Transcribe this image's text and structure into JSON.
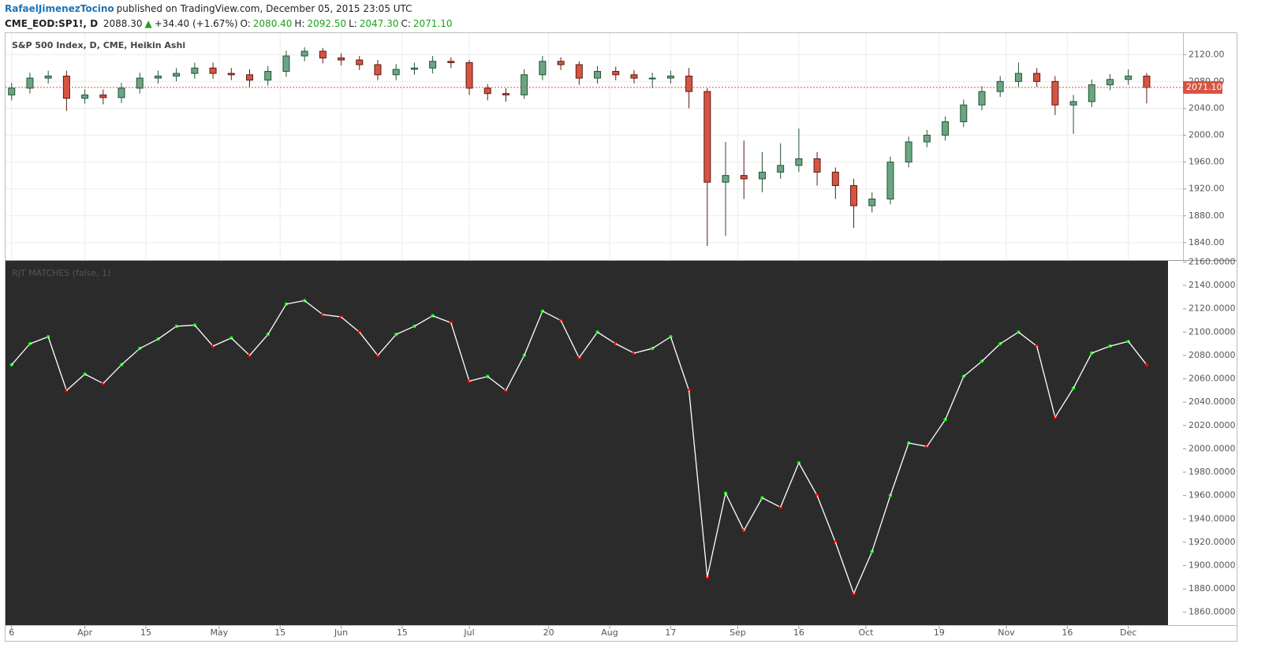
{
  "header": {
    "author": "RafaelJimenezTocino",
    "published": "published on TradingView.com, December 05, 2015 23:05 UTC",
    "symbol": "CME_EOD:SP1!, D",
    "last": "2088.30",
    "change": "+34.40 (+1.67%)",
    "o_label": "O:",
    "o": "2080.40",
    "h_label": "H:",
    "h": "2092.50",
    "l_label": "L:",
    "l": "2047.30",
    "c_label": "C:",
    "c": "2071.10"
  },
  "chart_data": [
    {
      "type": "candlestick",
      "title": "S&P 500 Index, D, CME, Heikin Ashi",
      "up_color": "#6ba583",
      "down_color": "#d75442",
      "grid": true,
      "x": [
        0,
        3,
        6,
        9,
        12,
        15,
        18,
        21,
        24,
        27,
        30,
        33,
        36,
        39,
        42,
        45,
        48,
        51,
        54,
        57,
        60,
        63,
        66,
        69,
        72,
        75,
        78,
        81,
        84,
        87,
        90,
        93,
        96,
        99,
        102,
        105,
        108,
        111,
        114,
        117,
        120,
        123,
        126,
        129,
        132,
        135,
        138,
        141,
        144,
        147,
        150,
        153,
        156,
        159,
        162,
        165,
        168,
        171,
        174,
        177,
        180,
        183,
        186
      ],
      "open": [
        2060,
        2070,
        2085,
        2088,
        2055,
        2060,
        2056,
        2070,
        2085,
        2088,
        2092,
        2100,
        2092,
        2090,
        2082,
        2095,
        2118,
        2125,
        2115,
        2112,
        2105,
        2090,
        2098,
        2100,
        2110,
        2108,
        2070,
        2062,
        2060,
        2090,
        2110,
        2105,
        2085,
        2095,
        2090,
        2085,
        2085,
        2088,
        2065,
        1930,
        1940,
        1935,
        1945,
        1955,
        1965,
        1945,
        1925,
        1895,
        1905,
        1960,
        1990,
        2000,
        2020,
        2045,
        2065,
        2080,
        2092,
        2080,
        2045,
        2050,
        2075,
        2083,
        2088
      ],
      "high": [
        2078,
        2093,
        2096,
        2096,
        2068,
        2068,
        2078,
        2093,
        2096,
        2100,
        2108,
        2108,
        2100,
        2098,
        2103,
        2126,
        2131,
        2130,
        2122,
        2118,
        2112,
        2106,
        2108,
        2118,
        2116,
        2112,
        2076,
        2070,
        2098,
        2118,
        2116,
        2110,
        2103,
        2102,
        2097,
        2093,
        2096,
        2100,
        2070,
        1990,
        1992,
        1975,
        1988,
        2010,
        1975,
        1952,
        1935,
        1915,
        1968,
        1998,
        2008,
        2028,
        2053,
        2073,
        2088,
        2108,
        2100,
        2088,
        2060,
        2083,
        2091,
        2098,
        2092.5
      ],
      "low": [
        2052,
        2062,
        2077,
        2036,
        2047,
        2046,
        2048,
        2062,
        2077,
        2080,
        2084,
        2084,
        2082,
        2072,
        2074,
        2087,
        2110,
        2107,
        2104,
        2097,
        2082,
        2082,
        2090,
        2092,
        2100,
        2060,
        2052,
        2050,
        2054,
        2082,
        2097,
        2075,
        2077,
        2082,
        2077,
        2070,
        2077,
        2040,
        1835,
        1850,
        1905,
        1915,
        1935,
        1945,
        1925,
        1905,
        1862,
        1885,
        1897,
        1952,
        1982,
        1992,
        2012,
        2037,
        2057,
        2072,
        2072,
        2030,
        2002,
        2042,
        2067,
        2075,
        2047.3
      ],
      "close": [
        2070,
        2085,
        2088,
        2055,
        2060,
        2056,
        2070,
        2085,
        2088,
        2092,
        2100,
        2092,
        2090,
        2082,
        2095,
        2118,
        2125,
        2115,
        2112,
        2105,
        2090,
        2098,
        2100,
        2110,
        2108,
        2070,
        2062,
        2060,
        2090,
        2110,
        2105,
        2085,
        2095,
        2090,
        2085,
        2085,
        2088,
        2065,
        1930,
        1940,
        1935,
        1945,
        1955,
        1965,
        1945,
        1925,
        1895,
        1905,
        1960,
        1990,
        2000,
        2020,
        2045,
        2065,
        2080,
        2092,
        2080,
        2045,
        2050,
        2075,
        2083,
        2088,
        2071.1
      ],
      "last_label": "2071.10",
      "xlim": [
        -1,
        189.5
      ],
      "ylim": [
        1814,
        2152
      ],
      "yticks": [
        {
          "value": 1840,
          "label": "1840.00"
        },
        {
          "value": 1880,
          "label": "1880.00"
        },
        {
          "value": 1920,
          "label": "1920.00"
        },
        {
          "value": 1960,
          "label": "1960.00"
        },
        {
          "value": 2000,
          "label": "2000.00"
        },
        {
          "value": 2040,
          "label": "2040.00"
        },
        {
          "value": 2080,
          "label": "2080.00"
        },
        {
          "value": 2120,
          "label": "2120.00"
        }
      ]
    },
    {
      "type": "segments",
      "title": "RJT MATCHES (false, 1)",
      "line_color": "#ffffff",
      "up_color": "#00ff00",
      "down_color": "#ff0000",
      "background": "#2b2b2b",
      "x": [
        0,
        3,
        6,
        9,
        12,
        15,
        18,
        21,
        24,
        27,
        30,
        33,
        36,
        39,
        42,
        45,
        48,
        51,
        54,
        57,
        60,
        63,
        66,
        69,
        72,
        75,
        78,
        81,
        84,
        87,
        90,
        93,
        96,
        99,
        102,
        105,
        108,
        111,
        114,
        117,
        120,
        123,
        126,
        129,
        132,
        135,
        138,
        141,
        144,
        147,
        150,
        153,
        156,
        159,
        162,
        165,
        168,
        171,
        174,
        177,
        180,
        183,
        186
      ],
      "values": [
        2072,
        2090,
        2096,
        2050,
        2064,
        2056,
        2072,
        2086,
        2094,
        2105,
        2106,
        2088,
        2095,
        2080,
        2098,
        2124,
        2127,
        2115,
        2113,
        2100,
        2080,
        2098,
        2105,
        2114,
        2108,
        2058,
        2062,
        2050,
        2080,
        2118,
        2110,
        2078,
        2100,
        2090,
        2082,
        2086,
        2096,
        2050,
        1890,
        1962,
        1930,
        1958,
        1950,
        1988,
        1960,
        1920,
        1876,
        1912,
        1960,
        2005,
        2002,
        2025,
        2062,
        2075,
        2090,
        2100,
        2088,
        2027,
        2052,
        2082,
        2088,
        2092,
        2072
      ],
      "xlim": [
        -1,
        189.5
      ],
      "ylim": [
        1849,
        2161
      ],
      "yticks": [
        {
          "value": 1860,
          "label": "1860.0000"
        },
        {
          "value": 1880,
          "label": "1880.0000"
        },
        {
          "value": 1900,
          "label": "1900.0000"
        },
        {
          "value": 1920,
          "label": "1920.0000"
        },
        {
          "value": 1940,
          "label": "1940.0000"
        },
        {
          "value": 1960,
          "label": "1960.0000"
        },
        {
          "value": 1980,
          "label": "1980.0000"
        },
        {
          "value": 2000,
          "label": "2000.0000"
        },
        {
          "value": 2020,
          "label": "2020.0000"
        },
        {
          "value": 2040,
          "label": "2040.0000"
        },
        {
          "value": 2060,
          "label": "2060.0000"
        },
        {
          "value": 2080,
          "label": "2080.0000"
        },
        {
          "value": 2100,
          "label": "2100.0000"
        },
        {
          "value": 2120,
          "label": "2120.0000"
        },
        {
          "value": 2140,
          "label": "2140.0000"
        },
        {
          "value": 2160,
          "label": "2160.0000"
        }
      ],
      "xticks": [
        {
          "value": 0,
          "label": "6"
        },
        {
          "value": 12,
          "label": "Apr"
        },
        {
          "value": 22,
          "label": "15"
        },
        {
          "value": 34,
          "label": "May"
        },
        {
          "value": 44,
          "label": "15"
        },
        {
          "value": 54,
          "label": "Jun"
        },
        {
          "value": 64,
          "label": "15"
        },
        {
          "value": 75,
          "label": "Jul"
        },
        {
          "value": 88,
          "label": "20"
        },
        {
          "value": 98,
          "label": "Aug"
        },
        {
          "value": 108,
          "label": "17"
        },
        {
          "value": 119,
          "label": "Sep"
        },
        {
          "value": 129,
          "label": "16"
        },
        {
          "value": 140,
          "label": "Oct"
        },
        {
          "value": 152,
          "label": "19"
        },
        {
          "value": 163,
          "label": "Nov"
        },
        {
          "value": 173,
          "label": "16"
        },
        {
          "value": 183,
          "label": "Dec"
        }
      ]
    }
  ]
}
